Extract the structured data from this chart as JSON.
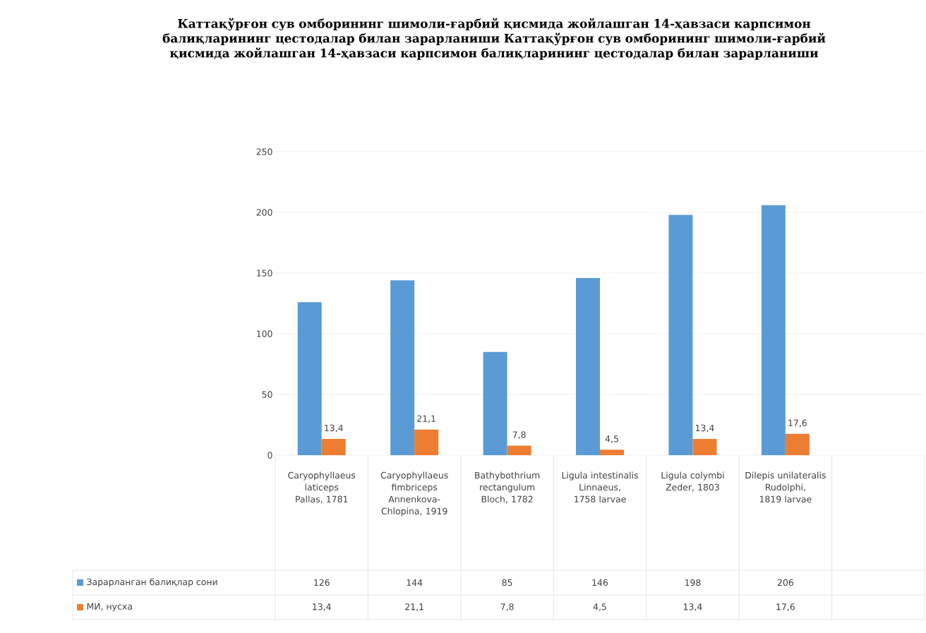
{
  "chart_data": {
    "type": "bar",
    "title": "Каттақўрғон сув омборининг шимоли-ғарбий қисмида жойлашган 14-ҳавзаси карпсимон балиқларининг цестодалар билан зарарланиши Каттақўрғон сув омборининг шимоли-ғарбий қисмида жойлашган 14-ҳавзаси карпсимон балиқларининг цестодалар билан зарарланиши",
    "categories": [
      "Caryophyllaeus laticeps Pallas, 1781",
      "Caryophyllaeus fimbriceps Annenkova-Chlopina, 1919",
      "Bathybothrium rectangulum Bloch, 1782",
      "Ligula intestinalis Linnaeus, 1758 larvae",
      "Ligula colymbi Zeder, 1803",
      "Dilepis unilateralis Rudolphi, 1819 larvae",
      null
    ],
    "series": [
      {
        "name": "Зарарланган балиқлар сони",
        "color": "#5b9bd5",
        "values": [
          126,
          144,
          85,
          146,
          198,
          206,
          null
        ],
        "value_labels": [
          "126",
          "144",
          "85",
          "146",
          "198",
          "206",
          null
        ]
      },
      {
        "name": "МИ, нусха",
        "color": "#ed7d31",
        "values": [
          13.4,
          21.1,
          7.8,
          4.5,
          13.4,
          17.6,
          null
        ],
        "value_labels": [
          "13,4",
          "21,1",
          "7,8",
          "4,5",
          "13,4",
          "17,6",
          null
        ]
      }
    ],
    "ylim": [
      0,
      250
    ],
    "yticks": [
      0,
      50,
      100,
      150,
      200,
      250
    ],
    "grid": "y",
    "legend": "bottom"
  }
}
